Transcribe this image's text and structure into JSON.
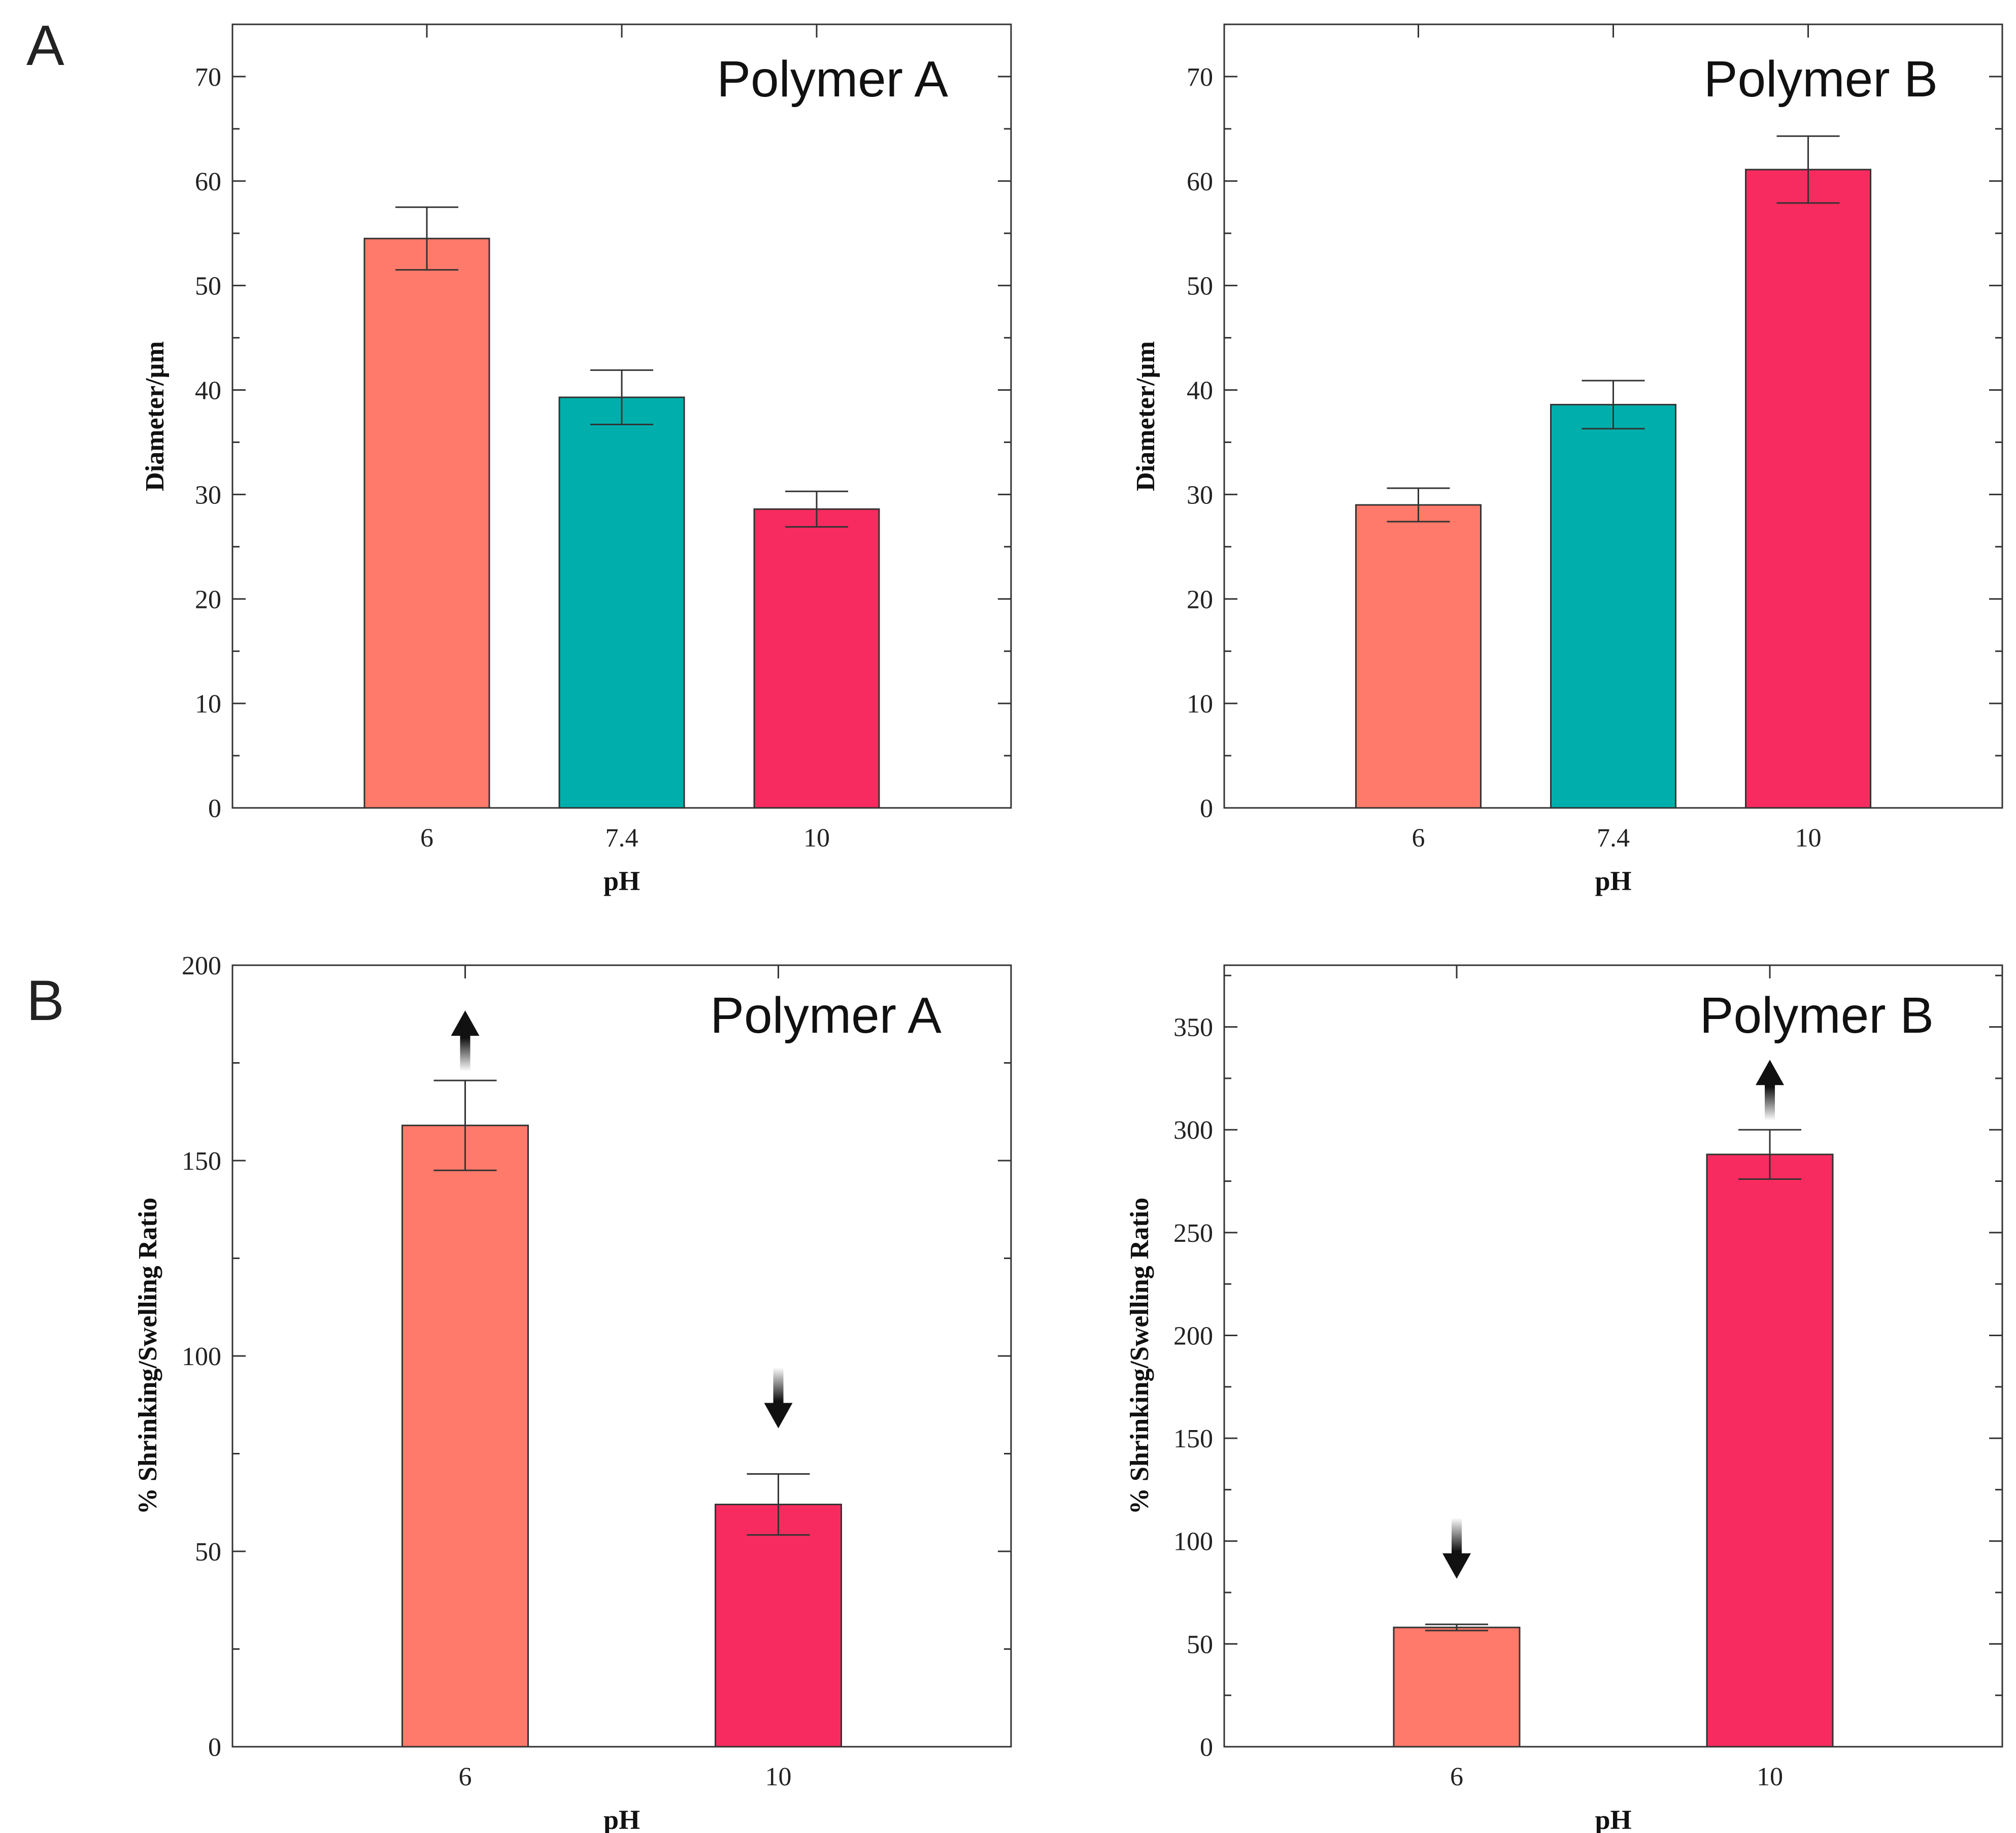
{
  "figure": {
    "panel_labels": [
      "A",
      "B"
    ]
  },
  "colors": {
    "ph6": "#FF7A6A",
    "ph74": "#00AFAC",
    "ph10": "#F72B5F",
    "axis": "#333333",
    "arrow": "#111111"
  },
  "chart_data": [
    {
      "id": "A-left",
      "type": "bar",
      "panel": "A",
      "title": "Polymer A",
      "xlabel": "pH",
      "ylabel": "Diameter/µm",
      "categories": [
        "6",
        "7.4",
        "10"
      ],
      "values": [
        54.5,
        39.3,
        28.6
      ],
      "errors": [
        3.0,
        2.6,
        1.7
      ],
      "bar_colors": [
        "#FF7A6A",
        "#00AFAC",
        "#F72B5F"
      ],
      "ylim": [
        0,
        75
      ],
      "yticks": [
        0,
        10,
        20,
        30,
        40,
        50,
        60,
        70
      ],
      "arrows": []
    },
    {
      "id": "A-right",
      "type": "bar",
      "panel": "A",
      "title": "Polymer B",
      "xlabel": "pH",
      "ylabel": "Diameter/µm",
      "categories": [
        "6",
        "7.4",
        "10"
      ],
      "values": [
        29.0,
        38.6,
        61.1
      ],
      "errors": [
        1.6,
        2.3,
        3.2
      ],
      "bar_colors": [
        "#FF7A6A",
        "#00AFAC",
        "#F72B5F"
      ],
      "ylim": [
        0,
        75
      ],
      "yticks": [
        0,
        10,
        20,
        30,
        40,
        50,
        60,
        70
      ],
      "arrows": []
    },
    {
      "id": "B-left",
      "type": "bar",
      "panel": "B",
      "title": "Polymer A",
      "xlabel": "pH",
      "ylabel": "% Shrinking/Swelling Ratio",
      "categories": [
        "6",
        "10"
      ],
      "values": [
        159,
        62
      ],
      "errors": [
        11.5,
        7.8
      ],
      "bar_colors": [
        "#FF7A6A",
        "#F72B5F"
      ],
      "ylim": [
        0,
        200
      ],
      "yticks": [
        0,
        50,
        100,
        150,
        200
      ],
      "arrows": [
        "up",
        "down"
      ]
    },
    {
      "id": "B-right",
      "type": "bar",
      "panel": "B",
      "title": "Polymer B",
      "xlabel": "pH",
      "ylabel": "% Shrinking/Swelling Ratio",
      "categories": [
        "6",
        "10"
      ],
      "values": [
        58,
        288
      ],
      "errors": [
        1.5,
        12
      ],
      "bar_colors": [
        "#FF7A6A",
        "#F72B5F"
      ],
      "ylim": [
        0,
        380
      ],
      "yticks": [
        0,
        50,
        100,
        150,
        200,
        250,
        300,
        350
      ],
      "arrows": [
        "down",
        "up"
      ]
    }
  ]
}
